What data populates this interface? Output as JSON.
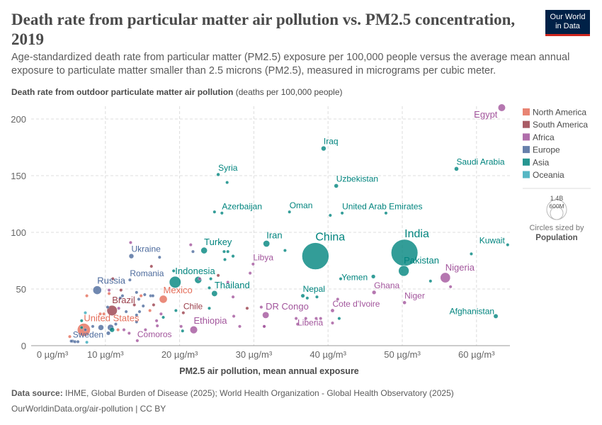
{
  "header": {
    "title": "Death rate from particular matter air pollution vs. PM2.5 concentration, 2019",
    "subtitle": "Age-standardized death rate from particular matter (PM2.5) exposure per 100,000 people versus the average mean annual exposure to particulate matter smaller than 2.5 microns (PM2.5), measured in micrograms per cubic meter.",
    "logo_line1": "Our World",
    "logo_line2": "in Data"
  },
  "footer": {
    "source_label": "Data source:",
    "source": "IHME, Global Burden of Disease (2025); World Health Organization - Global Health Observatory (2025)",
    "url": "OurWorldinData.org/air-pollution | CC BY"
  },
  "chart_data": {
    "type": "scatter",
    "ylabel_bold": "Death rate from outdoor particulate matter air pollution",
    "ylabel_unit": "(deaths per 100,000 people)",
    "xlabel": "PM2.5 air pollution, mean annual exposure",
    "xlim": [
      0,
      64
    ],
    "ylim": [
      0,
      215
    ],
    "xticks": [
      {
        "v": 0,
        "label": "0 µg/m³"
      },
      {
        "v": 10,
        "label": "10 µg/m³"
      },
      {
        "v": 20,
        "label": "20 µg/m³"
      },
      {
        "v": 30,
        "label": "30 µg/m³"
      },
      {
        "v": 40,
        "label": "40 µg/m³"
      },
      {
        "v": 50,
        "label": "50 µg/m³"
      },
      {
        "v": 60,
        "label": "60 µg/m³"
      }
    ],
    "yticks": [
      0,
      50,
      100,
      150,
      200
    ],
    "grid": true,
    "legend": {
      "position": "right",
      "items": [
        {
          "name": "North America",
          "color": "#E56E5A"
        },
        {
          "name": "South America",
          "color": "#9A3F4B"
        },
        {
          "name": "Africa",
          "color": "#A2559C"
        },
        {
          "name": "Europe",
          "color": "#4C6A9C"
        },
        {
          "name": "Asia",
          "color": "#00847E"
        },
        {
          "name": "Oceania",
          "color": "#38AABA"
        }
      ]
    },
    "size_legend": {
      "large": "1.4B",
      "small": "600M",
      "caption": "Circles sized by",
      "variable": "Population"
    },
    "points": [
      {
        "label": "Egypt",
        "x": 63.4,
        "y": 210,
        "c": "Africa",
        "pop": 110
      },
      {
        "label": "Iraq",
        "x": 39.4,
        "y": 174,
        "c": "Asia",
        "pop": 44
      },
      {
        "label": "Syria",
        "x": 25.2,
        "y": 151,
        "c": "Asia",
        "pop": 22
      },
      {
        "label": "Uzbekistan",
        "x": 41.1,
        "y": 141,
        "c": "Asia",
        "pop": 34
      },
      {
        "label": "Saudi Arabia",
        "x": 57.3,
        "y": 156,
        "c": "Asia",
        "pop": 35
      },
      {
        "label": "Azerbaijan",
        "x": 25.7,
        "y": 117,
        "c": "Asia",
        "pop": 10
      },
      {
        "label": "Oman",
        "x": 34.8,
        "y": 118,
        "c": "Asia",
        "pop": 5
      },
      {
        "label": "United Arab Emirates",
        "x": 41.9,
        "y": 117,
        "c": "Asia",
        "pop": 9
      },
      {
        "label": "Iran",
        "x": 31.7,
        "y": 90,
        "c": "Asia",
        "pop": 87
      },
      {
        "label": "China",
        "x": 38.3,
        "y": 79,
        "c": "Asia",
        "pop": 1420
      },
      {
        "label": "India",
        "x": 50.3,
        "y": 82,
        "c": "Asia",
        "pop": 1400
      },
      {
        "label": "Kuwait",
        "x": 64.2,
        "y": 89,
        "c": "Asia",
        "pop": 4
      },
      {
        "label": "Ukraine",
        "x": 13.5,
        "y": 79,
        "c": "Europe",
        "pop": 44
      },
      {
        "label": "Turkey",
        "x": 23.3,
        "y": 84,
        "c": "Asia",
        "pop": 83
      },
      {
        "label": "Libya",
        "x": 29.9,
        "y": 72,
        "c": "Africa",
        "pop": 7
      },
      {
        "label": "Pakistan",
        "x": 50.2,
        "y": 66,
        "c": "Asia",
        "pop": 220
      },
      {
        "label": "Nigeria",
        "x": 55.8,
        "y": 60,
        "c": "Africa",
        "pop": 200
      },
      {
        "label": "Yemen",
        "x": 46.1,
        "y": 61,
        "c": "Asia",
        "pop": 31
      },
      {
        "label": "Romania",
        "x": 13.3,
        "y": 58,
        "c": "Europe",
        "pop": 19
      },
      {
        "label": "Indonesia",
        "x": 19.4,
        "y": 56,
        "c": "Asia",
        "pop": 270
      },
      {
        "label": "Russia",
        "x": 8.9,
        "y": 49,
        "c": "Europe",
        "pop": 145
      },
      {
        "label": "Thailand",
        "x": 24.7,
        "y": 46,
        "c": "Asia",
        "pop": 70
      },
      {
        "label": "Ghana",
        "x": 46.2,
        "y": 47,
        "c": "Africa",
        "pop": 31
      },
      {
        "label": "Mexico",
        "x": 17.8,
        "y": 41,
        "c": "North America",
        "pop": 125
      },
      {
        "label": "Nepal",
        "x": 36.6,
        "y": 44,
        "c": "Asia",
        "pop": 29
      },
      {
        "label": "Niger",
        "x": 50.3,
        "y": 38,
        "c": "Africa",
        "pop": 24
      },
      {
        "label": "Afghanistan",
        "x": 62.6,
        "y": 26,
        "c": "Asia",
        "pop": 38
      },
      {
        "label": "Brazil",
        "x": 10.9,
        "y": 31,
        "c": "South America",
        "pop": 212
      },
      {
        "label": "Chile",
        "x": 20.5,
        "y": 29,
        "c": "South America",
        "pop": 19
      },
      {
        "label": "DR Congo",
        "x": 31.6,
        "y": 27,
        "c": "Africa",
        "pop": 90
      },
      {
        "label": "Cote d'Ivoire",
        "x": 40.6,
        "y": 31,
        "c": "Africa",
        "pop": 26
      },
      {
        "label": "Liberia",
        "x": 35.7,
        "y": 24,
        "c": "Africa",
        "pop": 5
      },
      {
        "label": "United States",
        "x": 7.1,
        "y": 14,
        "c": "North America",
        "pop": 330
      },
      {
        "label": "Ethiopia",
        "x": 21.9,
        "y": 14,
        "c": "Africa",
        "pop": 115
      },
      {
        "label": "Comoros",
        "x": 14.3,
        "y": 4.4,
        "c": "Africa",
        "pop": 1
      },
      {
        "label": "Sweden",
        "x": 5.6,
        "y": 4,
        "c": "Europe",
        "pop": 10
      },
      {
        "x": 13.4,
        "y": 91,
        "c": "Africa"
      },
      {
        "x": 17.3,
        "y": 78,
        "c": "Europe"
      },
      {
        "x": 16.2,
        "y": 70,
        "c": "South America"
      },
      {
        "x": 19.2,
        "y": 66,
        "c": "Asia"
      },
      {
        "x": 21.5,
        "y": 89,
        "c": "Africa",
        "pop": 12
      },
      {
        "x": 21.8,
        "y": 83,
        "c": "Europe"
      },
      {
        "x": 26,
        "y": 83,
        "c": "Asia"
      },
      {
        "x": 26.5,
        "y": 83,
        "c": "Asia"
      },
      {
        "x": 27.2,
        "y": 79,
        "c": "Asia",
        "pop": 20
      },
      {
        "x": 26.1,
        "y": 76,
        "c": "Asia"
      },
      {
        "x": 22.7,
        "y": 59,
        "c": "Africa"
      },
      {
        "x": 24.2,
        "y": 59,
        "c": "Asia"
      },
      {
        "x": 25.2,
        "y": 62,
        "c": "South America"
      },
      {
        "x": 22.5,
        "y": 58,
        "c": "Asia",
        "pop": 100
      },
      {
        "x": 26.5,
        "y": 56,
        "c": "Africa"
      },
      {
        "x": 24,
        "y": 51,
        "c": "Asia"
      },
      {
        "x": 27.2,
        "y": 43,
        "c": "Africa",
        "pop": 8
      },
      {
        "x": 24,
        "y": 33,
        "c": "Asia",
        "pop": 15
      },
      {
        "x": 29.1,
        "y": 33,
        "c": "South America"
      },
      {
        "x": 31,
        "y": 34,
        "c": "Africa"
      },
      {
        "x": 29.5,
        "y": 64,
        "c": "Africa"
      },
      {
        "x": 20.4,
        "y": 13,
        "c": "Asia"
      },
      {
        "x": 20.2,
        "y": 17,
        "c": "Africa"
      },
      {
        "x": 27.3,
        "y": 26,
        "c": "Africa"
      },
      {
        "x": 28.1,
        "y": 17,
        "c": "Africa"
      },
      {
        "x": 31.4,
        "y": 17,
        "c": "Africa",
        "pop": 8
      },
      {
        "x": 19.5,
        "y": 31,
        "c": "Asia"
      },
      {
        "x": 17.5,
        "y": 28,
        "c": "Africa"
      },
      {
        "x": 17.8,
        "y": 25,
        "c": "Asia"
      },
      {
        "x": 16.9,
        "y": 22,
        "c": "Africa"
      },
      {
        "x": 17,
        "y": 17.5,
        "c": "Africa"
      },
      {
        "x": 16.5,
        "y": 36,
        "c": "South America"
      },
      {
        "x": 16,
        "y": 31,
        "c": "North America"
      },
      {
        "x": 15.4,
        "y": 14,
        "c": "Africa",
        "pop": 15
      },
      {
        "x": 12.5,
        "y": 14,
        "c": "Africa",
        "pop": 15
      },
      {
        "x": 13.2,
        "y": 11,
        "c": "Africa"
      },
      {
        "x": 11.7,
        "y": 14,
        "c": "North America"
      },
      {
        "x": 14.2,
        "y": 27,
        "c": "Europe",
        "pop": 15
      },
      {
        "x": 14.6,
        "y": 30,
        "c": "Europe"
      },
      {
        "x": 14.2,
        "y": 47,
        "c": "Europe"
      },
      {
        "x": 15.3,
        "y": 45,
        "c": "Europe"
      },
      {
        "x": 16.1,
        "y": 44,
        "c": "Europe"
      },
      {
        "x": 16.4,
        "y": 44,
        "c": "Europe"
      },
      {
        "x": 14.8,
        "y": 44,
        "c": "North America"
      },
      {
        "x": 14.5,
        "y": 41,
        "c": "Europe"
      },
      {
        "x": 15.1,
        "y": 35,
        "c": "Europe"
      },
      {
        "x": 13.9,
        "y": 36,
        "c": "South America"
      },
      {
        "x": 12.8,
        "y": 30,
        "c": "Europe"
      },
      {
        "x": 11.8,
        "y": 33,
        "c": "Africa"
      },
      {
        "x": 12.1,
        "y": 49,
        "c": "South America"
      },
      {
        "x": 11,
        "y": 59,
        "c": "South America"
      },
      {
        "x": 10.5,
        "y": 49,
        "c": "Africa"
      },
      {
        "x": 10.5,
        "y": 46,
        "c": "North America"
      },
      {
        "x": 10.3,
        "y": 34,
        "c": "Europe"
      },
      {
        "x": 12.3,
        "y": 44,
        "c": "Europe"
      },
      {
        "x": 12,
        "y": 42,
        "c": "Europe"
      },
      {
        "x": 7.5,
        "y": 44,
        "c": "North America"
      },
      {
        "x": 7.3,
        "y": 29,
        "c": "Oceania"
      },
      {
        "x": 9.3,
        "y": 28,
        "c": "North America"
      },
      {
        "x": 9.8,
        "y": 28,
        "c": "North America"
      },
      {
        "x": 8.3,
        "y": 17,
        "c": "Europe"
      },
      {
        "x": 9.4,
        "y": 16,
        "c": "Europe",
        "pop": 60
      },
      {
        "x": 10.7,
        "y": 16,
        "c": "Europe",
        "pop": 80
      },
      {
        "x": 10.9,
        "y": 14,
        "c": "Asia",
        "pop": 45
      },
      {
        "x": 10.4,
        "y": 11,
        "c": "Europe",
        "pop": 30
      },
      {
        "x": 11.4,
        "y": 19,
        "c": "Europe"
      },
      {
        "x": 14.2,
        "y": 21,
        "c": "Europe"
      },
      {
        "x": 6.8,
        "y": 22,
        "c": "Asia"
      },
      {
        "x": 6.8,
        "y": 16,
        "c": "Asia"
      },
      {
        "x": 7.3,
        "y": 14,
        "c": "Europe"
      },
      {
        "x": 5.2,
        "y": 8,
        "c": "North America"
      },
      {
        "x": 5.4,
        "y": 4,
        "c": "Europe"
      },
      {
        "x": 5.9,
        "y": 3.5,
        "c": "Europe"
      },
      {
        "x": 6.3,
        "y": 3.5,
        "c": "Europe"
      },
      {
        "x": 7.5,
        "y": 3,
        "c": "Oceania"
      },
      {
        "x": 26.4,
        "y": 144,
        "c": "Asia"
      },
      {
        "x": 24.7,
        "y": 118,
        "c": "Asia"
      },
      {
        "x": 34.2,
        "y": 84,
        "c": "Asia"
      },
      {
        "x": 41.7,
        "y": 59,
        "c": "Asia"
      },
      {
        "x": 53.8,
        "y": 57,
        "c": "Asia"
      },
      {
        "x": 56.5,
        "y": 52,
        "c": "Africa"
      },
      {
        "x": 59.3,
        "y": 81,
        "c": "Asia"
      },
      {
        "x": 41.3,
        "y": 41,
        "c": "Africa"
      },
      {
        "x": 41.5,
        "y": 24,
        "c": "Asia"
      },
      {
        "x": 40.6,
        "y": 20,
        "c": "Africa"
      },
      {
        "x": 39,
        "y": 24,
        "c": "Africa"
      },
      {
        "x": 38.4,
        "y": 24,
        "c": "Africa"
      },
      {
        "x": 37,
        "y": 24,
        "c": "Africa"
      },
      {
        "x": 35.9,
        "y": 19,
        "c": "Africa"
      },
      {
        "x": 31.4,
        "y": 17,
        "c": "Africa"
      },
      {
        "x": 37.2,
        "y": 42,
        "c": "Asia"
      },
      {
        "x": 38.5,
        "y": 43,
        "c": "Asia"
      },
      {
        "x": 47.8,
        "y": 117,
        "c": "Asia"
      },
      {
        "x": 40.3,
        "y": 115,
        "c": "Asia"
      }
    ]
  }
}
